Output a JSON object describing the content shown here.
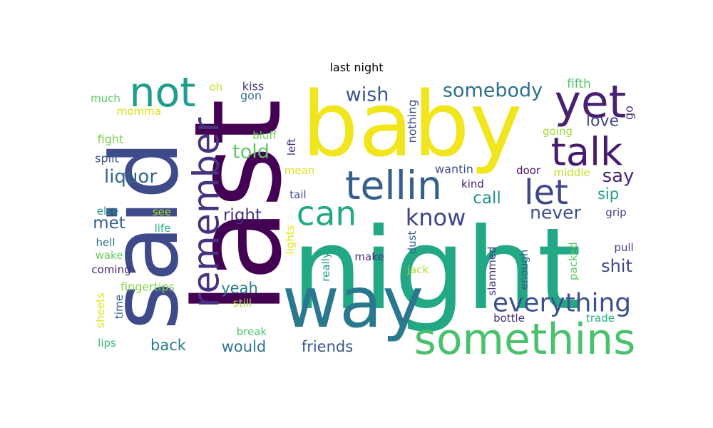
{
  "title": "last night",
  "words": [
    {
      "text": "baby",
      "color": "#f1e51d"
    },
    {
      "text": "night",
      "color": "#22a884"
    },
    {
      "text": "last",
      "color": "#440154"
    },
    {
      "text": "said",
      "color": "#3e4a89"
    },
    {
      "text": "way",
      "color": "#2a788e"
    },
    {
      "text": "somethins",
      "color": "#4ac16d"
    },
    {
      "text": "tellin",
      "color": "#35608d"
    },
    {
      "text": "remember",
      "color": "#46327e"
    },
    {
      "text": "not",
      "color": "#1f9e89"
    },
    {
      "text": "yet",
      "color": "#482173"
    },
    {
      "text": "talk",
      "color": "#481b6d"
    },
    {
      "text": "can",
      "color": "#22a884"
    },
    {
      "text": "let",
      "color": "#3f4788"
    },
    {
      "text": "everything",
      "color": "#3b528b"
    },
    {
      "text": "know",
      "color": "#414487"
    },
    {
      "text": "somebody",
      "color": "#2d708e"
    },
    {
      "text": "wish",
      "color": "#3a548c"
    },
    {
      "text": "told",
      "color": "#5ec962"
    },
    {
      "text": "liquor",
      "color": "#31688e"
    },
    {
      "text": "say",
      "color": "#482575"
    },
    {
      "text": "never",
      "color": "#3b518b"
    },
    {
      "text": "shit",
      "color": "#404688"
    },
    {
      "text": "love",
      "color": "#3f4889"
    },
    {
      "text": "right",
      "color": "#46337e"
    },
    {
      "text": "met",
      "color": "#355f8d"
    },
    {
      "text": "call",
      "color": "#21918c"
    },
    {
      "text": "yeah",
      "color": "#287d8e"
    },
    {
      "text": "would",
      "color": "#2c728e"
    },
    {
      "text": "friends",
      "color": "#39558c"
    },
    {
      "text": "back",
      "color": "#277f8e"
    },
    {
      "text": "sip",
      "color": "#1fa287"
    },
    {
      "text": "nothing",
      "color": "#3e4c8a"
    },
    {
      "text": "fifth",
      "color": "#52c569"
    },
    {
      "text": "go",
      "color": "#482979"
    },
    {
      "text": "going",
      "color": "#a0da39"
    },
    {
      "text": "kiss",
      "color": "#433e85"
    },
    {
      "text": "gon",
      "color": "#2e6f8e"
    },
    {
      "text": "oh",
      "color": "#c8e020"
    },
    {
      "text": "much",
      "color": "#5ac864"
    },
    {
      "text": "momma",
      "color": "#d8e219"
    },
    {
      "text": "fight",
      "color": "#7ad151"
    },
    {
      "text": "bluff",
      "color": "#6ccd5a"
    },
    {
      "text": "left",
      "color": "#46307e"
    },
    {
      "text": "mean",
      "color": "#dde318"
    },
    {
      "text": "wantin",
      "color": "#3d4e8a"
    },
    {
      "text": "door",
      "color": "#471063"
    },
    {
      "text": "middle",
      "color": "#c0df25"
    },
    {
      "text": "split",
      "color": "#3b528b"
    },
    {
      "text": "tail",
      "color": "#3e4989"
    },
    {
      "text": "kind",
      "color": "#481f70"
    },
    {
      "text": "grip",
      "color": "#3f4788"
    },
    {
      "text": "else",
      "color": "#1f9a8a"
    },
    {
      "text": "see",
      "color": "#b5de2b"
    },
    {
      "text": "life",
      "color": "#2db27d"
    },
    {
      "text": "lights",
      "color": "#e5e419"
    },
    {
      "text": "dust",
      "color": "#32648e"
    },
    {
      "text": "hell",
      "color": "#2c728e"
    },
    {
      "text": "pull",
      "color": "#3f4889"
    },
    {
      "text": "wake",
      "color": "#63cb5f"
    },
    {
      "text": "make",
      "color": "#472c7a"
    },
    {
      "text": "really",
      "color": "#1f968b"
    },
    {
      "text": "jack",
      "color": "#addc30"
    },
    {
      "text": "enough",
      "color": "#34618d"
    },
    {
      "text": "slammed",
      "color": "#453781"
    },
    {
      "text": "packed",
      "color": "#5ec962"
    },
    {
      "text": "coming",
      "color": "#482475"
    },
    {
      "text": "fingertips",
      "color": "#86d549"
    },
    {
      "text": "sheets",
      "color": "#dde318"
    },
    {
      "text": "time",
      "color": "#355f8d"
    },
    {
      "text": "still",
      "color": "#a2da37"
    },
    {
      "text": "bottle",
      "color": "#472d7b"
    },
    {
      "text": "trade",
      "color": "#29af7f"
    },
    {
      "text": "break",
      "color": "#52c569"
    },
    {
      "text": "lips",
      "color": "#3aba76"
    }
  ]
}
